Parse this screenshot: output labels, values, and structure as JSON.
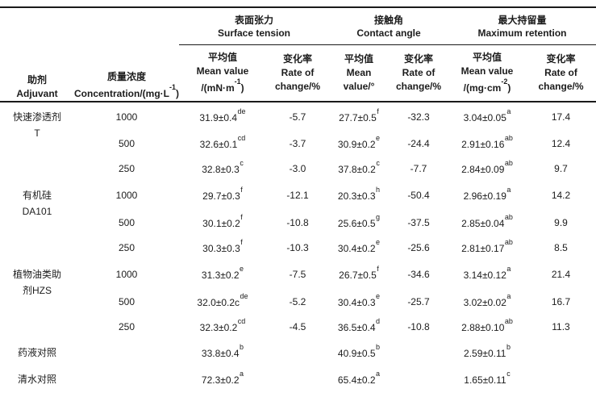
{
  "table": {
    "header": {
      "adjuvant_zh": "助剂",
      "adjuvant_en": "Adjuvant",
      "concentration_zh": "质量浓度",
      "concentration_en_pre": "Concentration/(mg·L",
      "concentration_en_sup": "-1",
      "concentration_en_post": ")",
      "groups": [
        {
          "zh": "表面张力",
          "en": "Surface tension"
        },
        {
          "zh": "接触角",
          "en": "Contact angle"
        },
        {
          "zh": "最大持留量",
          "en": "Maximum retention"
        }
      ],
      "subheaders": [
        {
          "l1": "平均值",
          "l2": "Mean value",
          "l3_pre": "/(mN·m",
          "l3_sup": "-1",
          "l3_post": ")"
        },
        {
          "l1": "变化率",
          "l2": "Rate of",
          "l3_pre": "change/%",
          "l3_sup": "",
          "l3_post": ""
        },
        {
          "l1": "平均值",
          "l2": "Mean",
          "l3_pre": "value/°",
          "l3_sup": "",
          "l3_post": ""
        },
        {
          "l1": "变化率",
          "l2": "Rate of",
          "l3_pre": "change/%",
          "l3_sup": "",
          "l3_post": ""
        },
        {
          "l1": "平均值",
          "l2": "Mean value",
          "l3_pre": "/(mg·cm",
          "l3_sup": "-2",
          "l3_post": ")"
        },
        {
          "l1": "变化率",
          "l2": "Rate of",
          "l3_pre": "change/%",
          "l3_sup": "",
          "l3_post": ""
        }
      ]
    },
    "rows": [
      {
        "adjuvant": "快速渗透剂\nT",
        "span": 3,
        "conc": "1000",
        "cells": [
          {
            "v": "31.9±0.4",
            "s": "de"
          },
          {
            "v": "-5.7",
            "s": ""
          },
          {
            "v": "27.7±0.5",
            "s": "f"
          },
          {
            "v": "-32.3",
            "s": ""
          },
          {
            "v": "3.04±0.05",
            "s": "a"
          },
          {
            "v": "17.4",
            "s": ""
          }
        ]
      },
      {
        "conc": "500",
        "cells": [
          {
            "v": "32.6±0.1",
            "s": "cd"
          },
          {
            "v": "-3.7",
            "s": ""
          },
          {
            "v": "30.9±0.2",
            "s": "e"
          },
          {
            "v": "-24.4",
            "s": ""
          },
          {
            "v": "2.91±0.16",
            "s": "ab"
          },
          {
            "v": "12.4",
            "s": ""
          }
        ]
      },
      {
        "conc": "250",
        "cells": [
          {
            "v": "32.8±0.3",
            "s": "c"
          },
          {
            "v": "-3.0",
            "s": ""
          },
          {
            "v": "37.8±0.2",
            "s": "c"
          },
          {
            "v": "-7.7",
            "s": ""
          },
          {
            "v": "2.84±0.09",
            "s": "ab"
          },
          {
            "v": "9.7",
            "s": ""
          }
        ]
      },
      {
        "adjuvant": "有机硅\nDA101",
        "span": 3,
        "conc": "1000",
        "cells": [
          {
            "v": "29.7±0.3",
            "s": "f"
          },
          {
            "v": "-12.1",
            "s": ""
          },
          {
            "v": "20.3±0.3",
            "s": "h"
          },
          {
            "v": "-50.4",
            "s": ""
          },
          {
            "v": "2.96±0.19",
            "s": "a"
          },
          {
            "v": "14.2",
            "s": ""
          }
        ]
      },
      {
        "conc": "500",
        "cells": [
          {
            "v": "30.1±0.2",
            "s": "f"
          },
          {
            "v": "-10.8",
            "s": ""
          },
          {
            "v": "25.6±0.5",
            "s": "g"
          },
          {
            "v": "-37.5",
            "s": ""
          },
          {
            "v": "2.85±0.04",
            "s": "ab"
          },
          {
            "v": "9.9",
            "s": ""
          }
        ]
      },
      {
        "conc": "250",
        "cells": [
          {
            "v": "30.3±0.3",
            "s": "f"
          },
          {
            "v": "-10.3",
            "s": ""
          },
          {
            "v": "30.4±0.2",
            "s": "e"
          },
          {
            "v": "-25.6",
            "s": ""
          },
          {
            "v": "2.81±0.17",
            "s": "ab"
          },
          {
            "v": "8.5",
            "s": ""
          }
        ]
      },
      {
        "adjuvant": "植物油类助\n剂HZS",
        "span": 3,
        "conc": "1000",
        "cells": [
          {
            "v": "31.3±0.2",
            "s": "e"
          },
          {
            "v": "-7.5",
            "s": ""
          },
          {
            "v": "26.7±0.5",
            "s": "f"
          },
          {
            "v": "-34.6",
            "s": ""
          },
          {
            "v": "3.14±0.12",
            "s": "a"
          },
          {
            "v": "21.4",
            "s": ""
          }
        ]
      },
      {
        "conc": "500",
        "cells": [
          {
            "v": "32.0±0.2c",
            "s": "de"
          },
          {
            "v": "-5.2",
            "s": ""
          },
          {
            "v": "30.4±0.3",
            "s": "e"
          },
          {
            "v": "-25.7",
            "s": ""
          },
          {
            "v": "3.02±0.02",
            "s": "a"
          },
          {
            "v": "16.7",
            "s": ""
          }
        ]
      },
      {
        "conc": "250",
        "cells": [
          {
            "v": "32.3±0.2",
            "s": "cd"
          },
          {
            "v": "-4.5",
            "s": ""
          },
          {
            "v": "36.5±0.4",
            "s": "d"
          },
          {
            "v": "-10.8",
            "s": ""
          },
          {
            "v": "2.88±0.10",
            "s": "ab"
          },
          {
            "v": "11.3",
            "s": ""
          }
        ]
      },
      {
        "adjuvant": "药液对照",
        "span": 1,
        "control": true,
        "conc": "",
        "cells": [
          {
            "v": "33.8±0.4",
            "s": "b"
          },
          {
            "v": "",
            "s": ""
          },
          {
            "v": "40.9±0.5",
            "s": "b"
          },
          {
            "v": "",
            "s": ""
          },
          {
            "v": "2.59±0.11",
            "s": "b"
          },
          {
            "v": "",
            "s": ""
          }
        ]
      },
      {
        "adjuvant": "清水对照",
        "span": 1,
        "control": true,
        "conc": "",
        "cells": [
          {
            "v": "72.3±0.2",
            "s": "a"
          },
          {
            "v": "",
            "s": ""
          },
          {
            "v": "65.4±0.2",
            "s": "a"
          },
          {
            "v": "",
            "s": ""
          },
          {
            "v": "1.65±0.11",
            "s": "c"
          },
          {
            "v": "",
            "s": ""
          }
        ]
      }
    ]
  }
}
